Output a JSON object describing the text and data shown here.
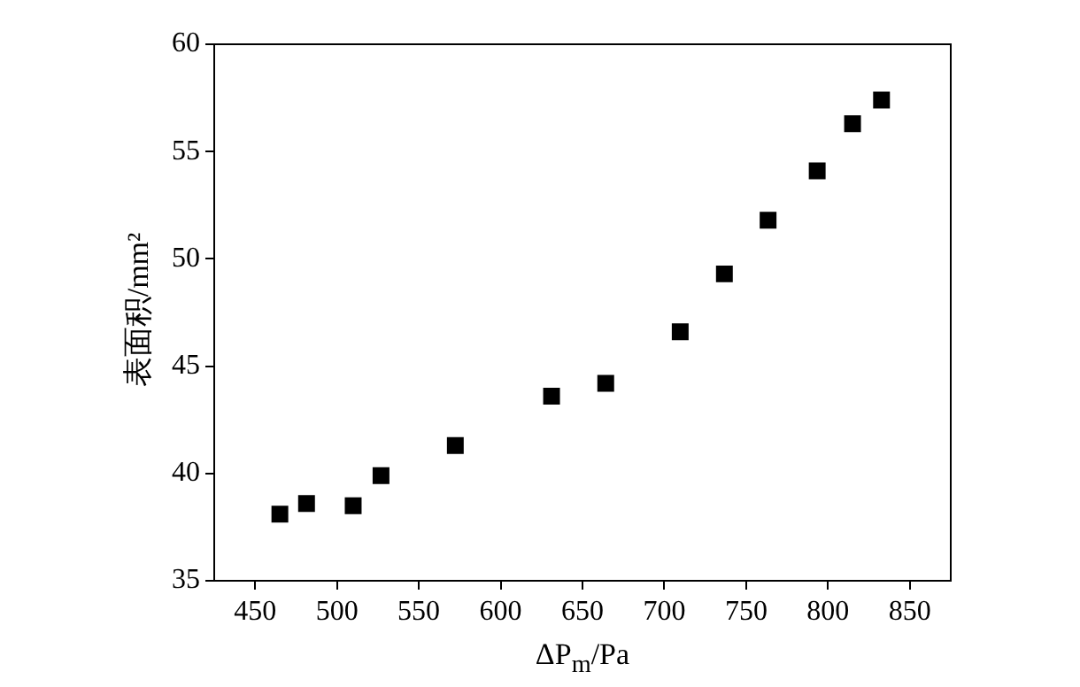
{
  "chart_data": {
    "type": "scatter",
    "xlabel": "ΔP$_{m}$/Pa",
    "ylabel": "表面积/mm²",
    "x": [
      465.1,
      481.4,
      509.9,
      526.9,
      572.3,
      631.1,
      664.2,
      709.7,
      736.7,
      763.4,
      793.4,
      815,
      832.7
    ],
    "series": [
      {
        "color": "#000000",
        "values": [
          38.1,
          38.6,
          38.5,
          39.9,
          41.3,
          43.6,
          44.2,
          46.6,
          49.3,
          51.8,
          54.1,
          56.3,
          57.4
        ]
      }
    ],
    "xlim": [
      425,
      875
    ],
    "xticks": [
      450,
      500,
      550,
      600,
      650,
      700,
      750,
      800,
      850
    ],
    "ylim": [
      35,
      60
    ],
    "yticks": [
      35,
      40,
      45,
      50,
      55,
      60
    ],
    "grid": false,
    "legend": false,
    "marker": "square"
  }
}
